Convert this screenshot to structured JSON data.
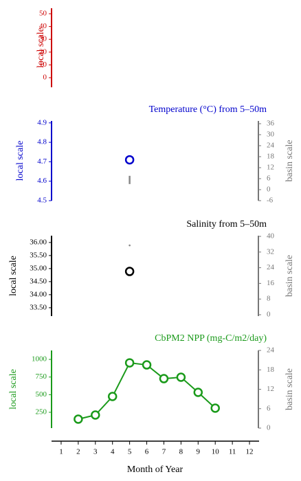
{
  "chart_data": [
    {
      "type": "line",
      "ylabel": "local scale",
      "color": "#cc0000",
      "ylim": [
        -7.5,
        54.3
      ],
      "yticks": [
        0,
        10,
        20,
        30,
        40,
        50
      ],
      "series": []
    },
    {
      "type": "scatter",
      "title": "Temperature (°C) from 5–50m",
      "ylabel": "local scale",
      "y2label": "basin scale",
      "color": "#0000cc",
      "ylim": [
        4.5,
        4.91
      ],
      "yticks": [
        4.5,
        4.6,
        4.7,
        4.8,
        4.9
      ],
      "y2lim": [
        -6,
        37.5
      ],
      "y2ticks": [
        -6,
        0,
        6,
        12,
        18,
        24,
        30,
        36
      ],
      "series": [
        {
          "color": "#0000cc",
          "x": [
            5
          ],
          "values": [
            4.71
          ]
        },
        {
          "color": "#888888",
          "x": [
            5
          ],
          "values": [
            5.3
          ],
          "axis": "y2",
          "marker": "dash"
        }
      ]
    },
    {
      "type": "scatter",
      "title": "Salinity from 5–50m",
      "ylabel": "local scale",
      "y2label": "basin scale",
      "color": "#000000",
      "ylim": [
        33.18,
        36.26
      ],
      "yticks": [
        {
          "value": 33.5,
          "label": "33.50"
        },
        {
          "value": 34,
          "label": "34.00"
        },
        {
          "value": 34.5,
          "label": "34.50"
        },
        {
          "value": 35,
          "label": "35.00"
        },
        {
          "value": 35.5,
          "label": "35.50"
        },
        {
          "value": 36,
          "label": "36.00"
        }
      ],
      "y2lim": [
        -0.7,
        40.35
      ],
      "y2ticks": [
        0,
        8,
        16,
        24,
        32,
        40
      ],
      "series": [
        {
          "color": "#000000",
          "x": [
            5
          ],
          "values": [
            34.89
          ]
        },
        {
          "color": "#888888",
          "x": [
            5
          ],
          "values": [
            35.4
          ],
          "axis": "y2",
          "marker": "dot"
        }
      ]
    },
    {
      "type": "line",
      "title": "CbPM2 NPP (mg-C/m2/day)",
      "ylabel": "local scale",
      "y2label": "basin scale",
      "color": "#1a9a1a",
      "ylim": [
        26,
        1127
      ],
      "yticks": [
        250,
        500,
        750,
        1000
      ],
      "y2lim": [
        0,
        24
      ],
      "y2ticks": [
        0,
        6,
        12,
        18,
        24
      ],
      "xlabel": "Month of Year",
      "xlim": [
        0.44,
        12.56
      ],
      "xticks": [
        1,
        2,
        3,
        4,
        5,
        6,
        7,
        8,
        9,
        10,
        11,
        12
      ],
      "series": [
        {
          "color": "#1a9a1a",
          "x": [
            2,
            3,
            4,
            5,
            6,
            7,
            8,
            9,
            10
          ],
          "values": [
            153,
            211,
            474,
            951,
            922,
            727,
            747,
            533,
            309
          ]
        }
      ]
    }
  ]
}
